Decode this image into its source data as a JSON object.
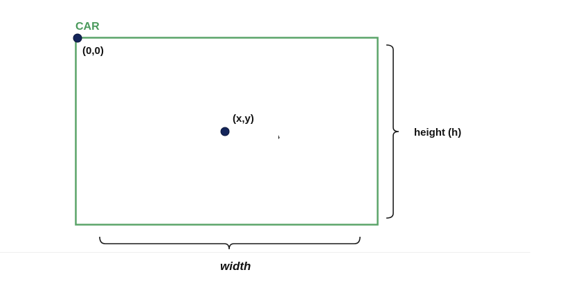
{
  "diagram": {
    "title_label": "CAR",
    "origin_label": "(0,0)",
    "point_label": "(x,y)",
    "height_label": "height (h)",
    "width_label": "width"
  },
  "colors": {
    "rectangle_stroke": "#5aa469",
    "title": "#4a9a5c",
    "point_fill": "#14255a",
    "brace": "#1a1a1a",
    "text": "#111111"
  }
}
